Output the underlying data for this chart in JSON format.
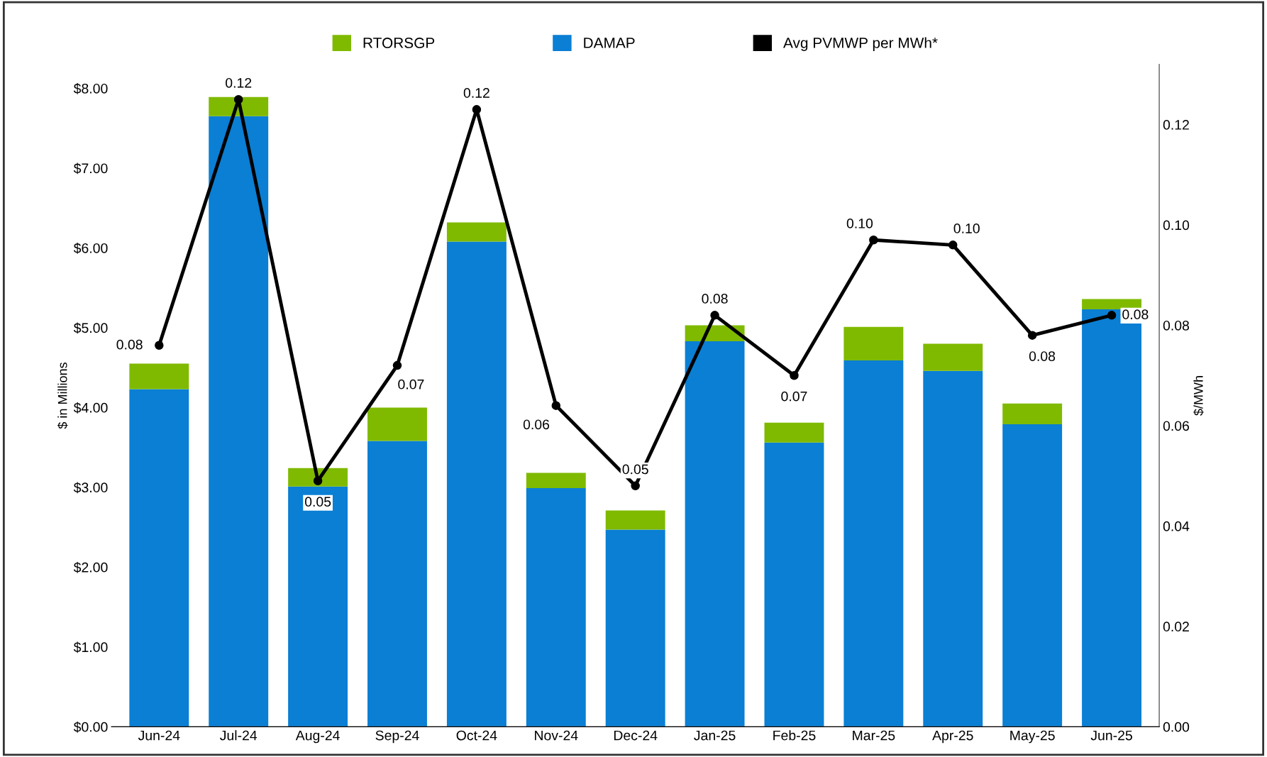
{
  "chart_data": {
    "type": "bar",
    "stacked": true,
    "legend": "top",
    "grid": false,
    "categories": [
      "Jun-24",
      "Jul-24",
      "Aug-24",
      "Sep-24",
      "Oct-24",
      "Nov-24",
      "Dec-24",
      "Jan-25",
      "Feb-25",
      "Mar-25",
      "Apr-25",
      "May-25",
      "Jun-25"
    ],
    "ylabel": "$ in Millions",
    "y2label": "$/MWh",
    "ylim": [
      0,
      8.3
    ],
    "yticks": [
      {
        "value": 0,
        "label": "$0.00"
      },
      {
        "value": 1,
        "label": "$1.00"
      },
      {
        "value": 2,
        "label": "$2.00"
      },
      {
        "value": 3,
        "label": "$3.00"
      },
      {
        "value": 4,
        "label": "$4.00"
      },
      {
        "value": 5,
        "label": "$5.00"
      },
      {
        "value": 6,
        "label": "$6.00"
      },
      {
        "value": 7,
        "label": "$7.00"
      },
      {
        "value": 8,
        "label": "$8.00"
      }
    ],
    "y2lim": [
      0,
      0.132
    ],
    "y2ticks": [
      {
        "value": 0,
        "label": "0.00"
      },
      {
        "value": 0.02,
        "label": "0.02"
      },
      {
        "value": 0.04,
        "label": "0.04"
      },
      {
        "value": 0.06,
        "label": "0.06"
      },
      {
        "value": 0.08,
        "label": "0.08"
      },
      {
        "value": 0.1,
        "label": "0.10"
      },
      {
        "value": 0.12,
        "label": "0.12"
      }
    ],
    "series": [
      {
        "name": "DAMAP",
        "color": "#0a7fd4",
        "values": [
          4.23,
          7.65,
          3.01,
          3.58,
          6.08,
          2.99,
          2.47,
          4.83,
          3.56,
          4.59,
          4.46,
          3.79,
          5.23
        ]
      },
      {
        "name": "RTORSGP",
        "color": "#7fba00",
        "values": [
          0.32,
          0.24,
          0.23,
          0.42,
          0.24,
          0.19,
          0.24,
          0.2,
          0.25,
          0.42,
          0.34,
          0.26,
          0.13
        ]
      },
      {
        "name": "Avg PVMWP per MWh*",
        "type": "line",
        "axis": "y2",
        "color": "#000000",
        "marker": "circle",
        "values": [
          0.076,
          0.125,
          0.049,
          0.072,
          0.123,
          0.064,
          0.048,
          0.082,
          0.07,
          0.097,
          0.096,
          0.078,
          0.082
        ],
        "value_labels": [
          "0.08",
          "0.12",
          "0.05",
          "0.07",
          "0.12",
          "0.06",
          "0.05",
          "0.08",
          "0.07",
          "0.10",
          "0.10",
          "0.08",
          "0.08"
        ]
      }
    ]
  }
}
